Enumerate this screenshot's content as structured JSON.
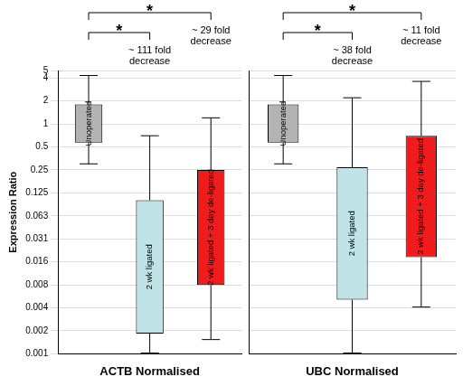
{
  "chart_data": [
    {
      "type": "box",
      "x_label": "ACTB Normalised",
      "y_label": "Expression Ratio",
      "categories": [
        "Unoperated",
        "2 wk ligated",
        "2 wk ligated + 3 day de-ligated"
      ],
      "values": [
        {
          "min": 0.3,
          "q1": 0.57,
          "q3": 1.8,
          "max": 4.3
        },
        {
          "min": 0.001,
          "q1": 0.0018,
          "q3": 0.1,
          "max": 0.7
        },
        {
          "min": 0.0015,
          "q1": 0.0078,
          "q3": 0.25,
          "max": 1.2
        }
      ],
      "colors": [
        "#b3b3b3",
        "#bfe3e6",
        "#ee1c1c"
      ],
      "annotations": [
        {
          "from": "Unoperated",
          "to": "2 wk ligated",
          "text": "~ 111 fold decrease",
          "significance": "*"
        },
        {
          "from": "Unoperated",
          "to": "2 wk ligated + 3 day de-ligated",
          "text": "~ 29 fold decrease",
          "significance": "*"
        }
      ],
      "log": "y",
      "ylim": [
        0.0009765625,
        5
      ],
      "yticks": [
        {
          "value": 0.0009765625,
          "label": "0.001"
        },
        {
          "value": 0.001953125,
          "label": "0.002"
        },
        {
          "value": 0.00390625,
          "label": "0.004"
        },
        {
          "value": 0.0078125,
          "label": "0.008"
        },
        {
          "value": 0.015625,
          "label": "0.016"
        },
        {
          "value": 0.03125,
          "label": "0.031"
        },
        {
          "value": 0.0625,
          "label": "0.063"
        },
        0.125,
        0.25,
        0.5,
        1,
        2,
        4,
        5
      ],
      "grid": true,
      "tick_labels": "y"
    },
    {
      "type": "box",
      "x_label": "UBC Normalised",
      "categories": [
        "Unoperated",
        "2 wk ligated",
        "2 wk ligated + 3 day de-ligated"
      ],
      "values": [
        {
          "min": 0.3,
          "q1": 0.57,
          "q3": 1.8,
          "max": 4.3
        },
        {
          "min": 0.001,
          "q1": 0.005,
          "q3": 0.27,
          "max": 2.2
        },
        {
          "min": 0.004,
          "q1": 0.018,
          "q3": 0.7,
          "max": 3.6
        }
      ],
      "colors": [
        "#b3b3b3",
        "#bfe3e6",
        "#ee1c1c"
      ],
      "annotations": [
        {
          "from": "Unoperated",
          "to": "2 wk ligated",
          "text": "~ 38 fold decrease",
          "significance": "*"
        },
        {
          "from": "Unoperated",
          "to": "2 wk ligated + 3 day de-ligated",
          "text": "~ 11 fold decrease",
          "significance": "*"
        }
      ],
      "log": "y",
      "ylim": [
        0.0009765625,
        5
      ],
      "yticks": [
        {
          "value": 0.0009765625,
          "label": "0.001"
        },
        {
          "value": 0.001953125,
          "label": "0.002"
        },
        {
          "value": 0.00390625,
          "label": "0.004"
        },
        {
          "value": 0.0078125,
          "label": "0.008"
        },
        {
          "value": 0.015625,
          "label": "0.016"
        },
        {
          "value": 0.03125,
          "label": "0.031"
        },
        {
          "value": 0.0625,
          "label": "0.063"
        },
        0.125,
        0.25,
        0.5,
        1,
        2,
        4,
        5
      ],
      "grid": true,
      "tick_labels": false
    }
  ]
}
